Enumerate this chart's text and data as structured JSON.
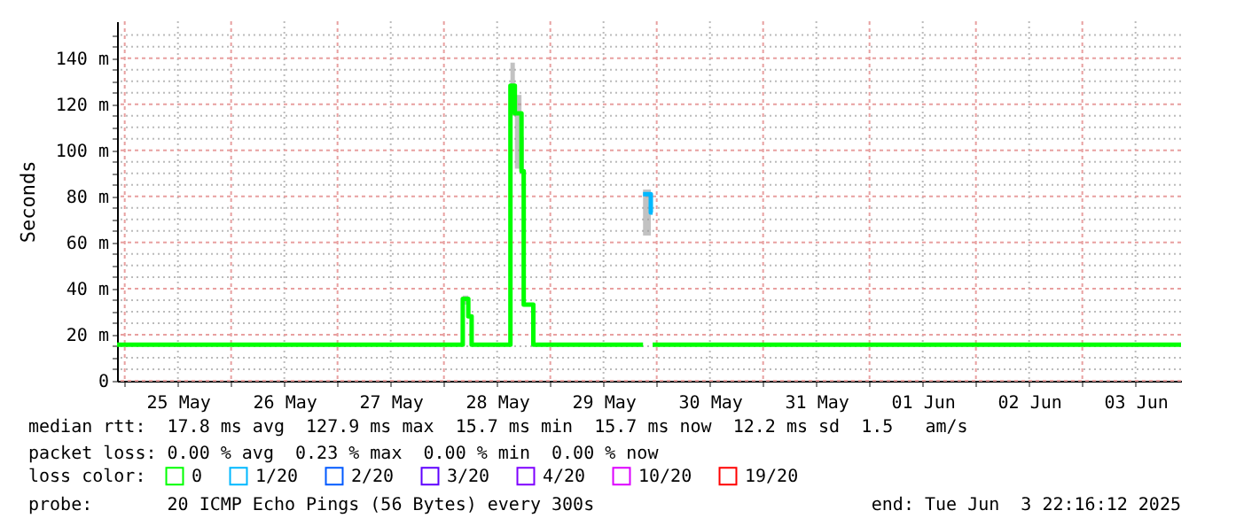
{
  "chart_data": {
    "type": "step",
    "ylabel": "Seconds",
    "legend_title": "loss color:",
    "legend": "bottom",
    "grid": true,
    "x": [
      "2025-05-24T22:16",
      "2025-05-28T04:15",
      "2025-05-28T05:30",
      "2025-05-28T06:15",
      "2025-05-28T15:00",
      "2025-05-28T16:00",
      "2025-05-28T17:30",
      "2025-05-28T18:00",
      "2025-05-28T20:10",
      "2025-05-29T20:55",
      "2025-05-29T22:40",
      "2025-05-29T23:05",
      "2025-06-03T22:16"
    ],
    "xlim": [
      "2025-05-24T22:16",
      "2025-06-03T22:16"
    ],
    "xticks": [
      {
        "value": "2025-05-25T00:00",
        "label": null
      },
      {
        "value": "2025-05-25T12:00",
        "label": "25 May"
      },
      {
        "value": "2025-05-26T00:00",
        "label": null
      },
      {
        "value": "2025-05-26T12:00",
        "label": "26 May"
      },
      {
        "value": "2025-05-27T00:00",
        "label": null
      },
      {
        "value": "2025-05-27T12:00",
        "label": "27 May"
      },
      {
        "value": "2025-05-28T00:00",
        "label": null
      },
      {
        "value": "2025-05-28T12:00",
        "label": "28 May"
      },
      {
        "value": "2025-05-29T00:00",
        "label": null
      },
      {
        "value": "2025-05-29T12:00",
        "label": "29 May"
      },
      {
        "value": "2025-05-30T00:00",
        "label": null
      },
      {
        "value": "2025-05-30T12:00",
        "label": "30 May"
      },
      {
        "value": "2025-05-31T00:00",
        "label": null
      },
      {
        "value": "2025-05-31T12:00",
        "label": "31 May"
      },
      {
        "value": "2025-06-01T00:00",
        "label": null
      },
      {
        "value": "2025-06-01T12:00",
        "label": "01 Jun"
      },
      {
        "value": "2025-06-02T00:00",
        "label": null
      },
      {
        "value": "2025-06-02T12:00",
        "label": "02 Jun"
      },
      {
        "value": "2025-06-03T00:00",
        "label": null
      },
      {
        "value": "2025-06-03T12:00",
        "label": "03 Jun"
      }
    ],
    "ylim": [
      0,
      156
    ],
    "yticks": [
      0,
      {
        "value": 5,
        "label": null
      },
      {
        "value": 10,
        "label": null
      },
      {
        "value": 15,
        "label": null
      },
      {
        "value": 20,
        "label": "20 m"
      },
      {
        "value": 25,
        "label": null
      },
      {
        "value": 30,
        "label": null
      },
      {
        "value": 35,
        "label": null
      },
      {
        "value": 40,
        "label": "40 m"
      },
      {
        "value": 45,
        "label": null
      },
      {
        "value": 50,
        "label": null
      },
      {
        "value": 55,
        "label": null
      },
      {
        "value": 60,
        "label": "60 m"
      },
      {
        "value": 65,
        "label": null
      },
      {
        "value": 70,
        "label": null
      },
      {
        "value": 75,
        "label": null
      },
      {
        "value": 80,
        "label": "80 m"
      },
      {
        "value": 85,
        "label": null
      },
      {
        "value": 90,
        "label": null
      },
      {
        "value": 95,
        "label": null
      },
      {
        "value": 100,
        "label": "100 m"
      },
      {
        "value": 105,
        "label": null
      },
      {
        "value": 110,
        "label": null
      },
      {
        "value": 115,
        "label": null
      },
      {
        "value": 120,
        "label": "120 m"
      },
      {
        "value": 125,
        "label": null
      },
      {
        "value": 130,
        "label": null
      },
      {
        "value": 135,
        "label": null
      },
      {
        "value": 140,
        "label": "140 m"
      },
      {
        "value": 145,
        "label": null
      },
      {
        "value": 150,
        "label": null
      }
    ],
    "series": [
      {
        "name": "0",
        "color": "#00ff00",
        "values": [
          15.7,
          35.5,
          28,
          15.7,
          128,
          116,
          91,
          33,
          15.7,
          null,
          null,
          15.7,
          15.7
        ],
        "lower": [
          null,
          33,
          27,
          null,
          115,
          92,
          83,
          28,
          null,
          63,
          63,
          null,
          null
        ],
        "upper": [
          null,
          37,
          31,
          null,
          138,
          124,
          106,
          42,
          null,
          83,
          80,
          null,
          null
        ]
      },
      {
        "name": "1/20",
        "color": "#00b8ff",
        "values": [
          null,
          null,
          null,
          null,
          null,
          null,
          null,
          null,
          null,
          81,
          73,
          null,
          null
        ]
      },
      {
        "name": "2/20",
        "color": "#0059ff",
        "values": [
          null,
          null,
          null,
          null,
          null,
          null,
          null,
          null,
          null,
          null,
          null,
          null,
          null
        ]
      },
      {
        "name": "3/20",
        "color": "#5e00ff",
        "values": [
          null,
          null,
          null,
          null,
          null,
          null,
          null,
          null,
          null,
          null,
          null,
          null,
          null
        ]
      },
      {
        "name": "4/20",
        "color": "#7e00ff",
        "values": [
          null,
          null,
          null,
          null,
          null,
          null,
          null,
          null,
          null,
          null,
          null,
          null,
          null
        ]
      },
      {
        "name": "10/20",
        "color": "#dd00ff",
        "values": [
          null,
          null,
          null,
          null,
          null,
          null,
          null,
          null,
          null,
          null,
          null,
          null,
          null
        ]
      },
      {
        "name": "19/20",
        "color": "#ff0000",
        "values": [
          null,
          null,
          null,
          null,
          null,
          null,
          null,
          null,
          null,
          null,
          null,
          null,
          null
        ]
      }
    ],
    "annotations": [
      "median rtt:  17.8 ms avg  127.9 ms max  15.7 ms min  15.7 ms now  12.2 ms sd  1.5   am/s",
      "packet loss: 0.00 % avg  0.23 % max  0.00 % min  0.00 % now",
      "probe:       20 ICMP Echo Pings (56 Bytes) every 300s",
      "end: Tue Jun  3 22:16:12 2025"
    ]
  }
}
